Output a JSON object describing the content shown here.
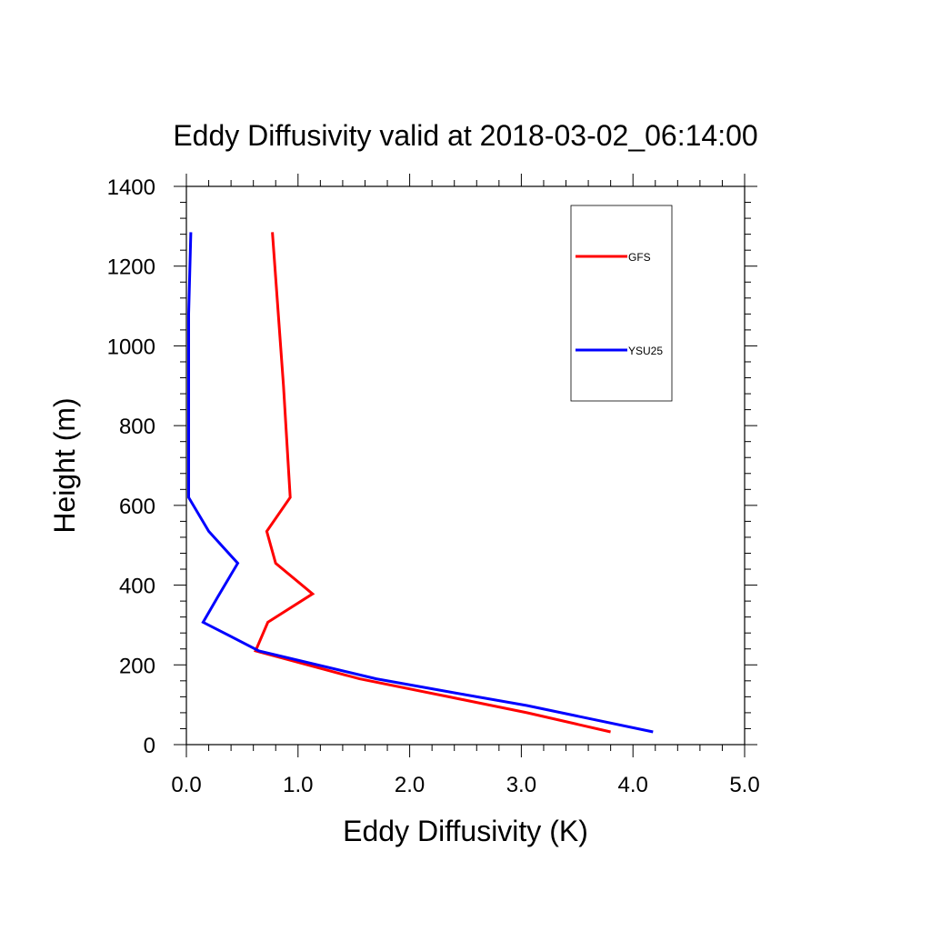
{
  "chart_data": {
    "type": "line",
    "title": "Eddy Diffusivity valid at 2018-03-02_06:14:00",
    "xlabel": "Eddy Diffusivity (K)",
    "ylabel": "Height (m)",
    "xlim": [
      0,
      5
    ],
    "ylim": [
      0,
      1400
    ],
    "x_ticks": [
      0,
      1,
      2,
      3,
      4,
      5
    ],
    "x_tick_labels": [
      "0.0",
      "1.0",
      "2.0",
      "3.0",
      "4.0",
      "5.0"
    ],
    "y_ticks": [
      0,
      200,
      400,
      600,
      800,
      1000,
      1200,
      1400
    ],
    "y_tick_labels": [
      "0",
      "200",
      "400",
      "600",
      "800",
      "1000",
      "1200",
      "1400"
    ],
    "grid": false,
    "legend_position": "top-right",
    "series": [
      {
        "name": "GFS",
        "color": "#ff0000",
        "x": [
          3.8,
          3.05,
          2.35,
          1.55,
          0.62,
          0.73,
          1.13,
          0.8,
          0.72,
          0.93,
          0.87,
          0.77
        ],
        "y": [
          32,
          80,
          120,
          165,
          235,
          307,
          378,
          455,
          535,
          620,
          900,
          1285
        ]
      },
      {
        "name": "YSU25",
        "color": "#0000ff",
        "x": [
          4.18,
          3.05,
          2.4,
          1.7,
          0.65,
          0.15,
          0.28,
          0.46,
          0.2,
          0.02,
          0.02,
          0.02,
          0.04
        ],
        "y": [
          32,
          98,
          130,
          165,
          235,
          307,
          370,
          455,
          535,
          620,
          900,
          1080,
          1285
        ]
      }
    ]
  }
}
